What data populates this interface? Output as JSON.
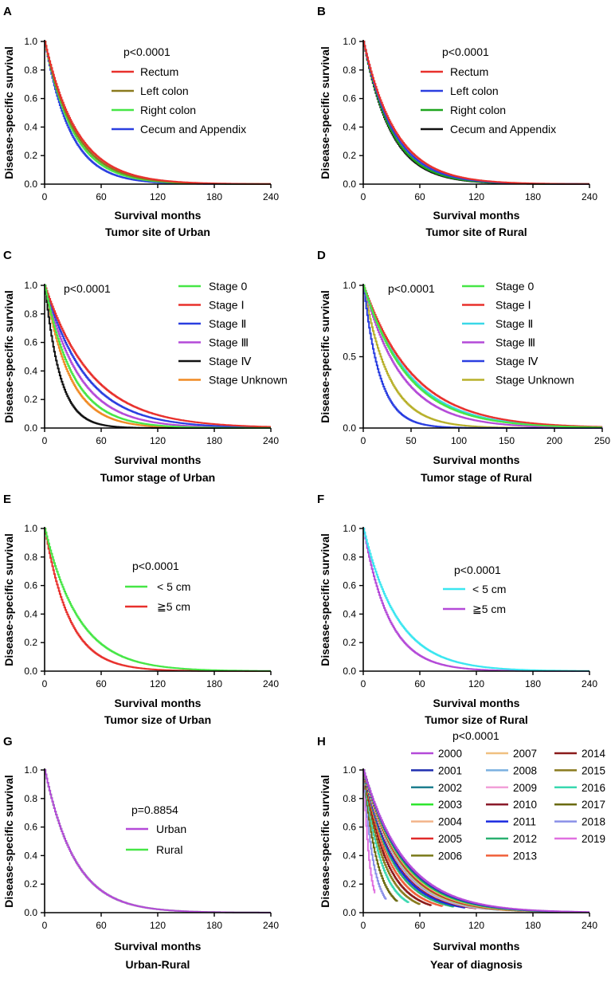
{
  "chart_data": [
    {
      "id": "A",
      "type": "line",
      "letter": "A",
      "ylabel": "Disease-specific survival",
      "xlabel": "Survival months",
      "subtitle": "Tumor site of Urban",
      "xlim": [
        0,
        240
      ],
      "ylim": [
        0,
        1.0
      ],
      "xticks": [
        "0",
        "60",
        "120",
        "180",
        "240"
      ],
      "yticks": [
        "0.0",
        "0.2",
        "0.4",
        "0.6",
        "0.8",
        "1.0"
      ],
      "pvalue": "p<0.0001",
      "series": [
        {
          "name": "Rectum",
          "color": "#e8302c",
          "tau": 34
        },
        {
          "name": "Left colon",
          "color": "#8a7a1e",
          "tau": 32
        },
        {
          "name": "Right colon",
          "color": "#46e646",
          "tau": 30
        },
        {
          "name": "Cecum and Appendix",
          "color": "#2a3ee0",
          "tau": 27
        }
      ]
    },
    {
      "id": "B",
      "type": "line",
      "letter": "B",
      "ylabel": "Disease-specific survival",
      "xlabel": "Survival months",
      "subtitle": "Tumor site of Rural",
      "xlim": [
        0,
        240
      ],
      "ylim": [
        0,
        1.0
      ],
      "xticks": [
        "0",
        "60",
        "120",
        "180",
        "240"
      ],
      "yticks": [
        "0.0",
        "0.2",
        "0.4",
        "0.6",
        "0.8",
        "1.0"
      ],
      "pvalue": "p<0.0001",
      "series": [
        {
          "name": "Rectum",
          "color": "#e8302c",
          "tau": 34
        },
        {
          "name": "Left colon",
          "color": "#2a3ee0",
          "tau": 32
        },
        {
          "name": "Right colon",
          "color": "#1ea51e",
          "tau": 30
        },
        {
          "name": "Cecum and Appendix",
          "color": "#111111",
          "tau": 29
        }
      ]
    },
    {
      "id": "C",
      "type": "line",
      "letter": "C",
      "ylabel": "Disease-specific survival",
      "xlabel": "Survival months",
      "subtitle": "Tumor stage of Urban",
      "xlim": [
        0,
        240
      ],
      "ylim": [
        0,
        1.0
      ],
      "xticks": [
        "0",
        "60",
        "120",
        "180",
        "240"
      ],
      "yticks": [
        "0.0",
        "0.2",
        "0.4",
        "0.6",
        "0.8",
        "1.0"
      ],
      "pvalue": "p<0.0001",
      "series": [
        {
          "name": "Stage 0",
          "color": "#46e646",
          "tau": 30
        },
        {
          "name": "Stage Ⅰ",
          "color": "#e8302c",
          "tau": 50
        },
        {
          "name": "Stage Ⅱ",
          "color": "#2a3ee0",
          "tau": 43
        },
        {
          "name": "Stage Ⅲ",
          "color": "#b44ad8",
          "tau": 36
        },
        {
          "name": "Stage Ⅳ",
          "color": "#111111",
          "tau": 16
        },
        {
          "name": "Stage Unknown",
          "color": "#f08a24",
          "tau": 26
        }
      ]
    },
    {
      "id": "D",
      "type": "line",
      "letter": "D",
      "ylabel": "Disease-specific survival",
      "xlabel": "Survival months",
      "subtitle": "Tumor stage of Rural",
      "xlim": [
        0,
        250
      ],
      "ylim": [
        0,
        1.0
      ],
      "xticks": [
        "0",
        "50",
        "100",
        "150",
        "200",
        "250"
      ],
      "yticks": [
        "0.0",
        "0.5",
        "1.0"
      ],
      "pvalue": "p<0.0001",
      "series": [
        {
          "name": "Stage 0",
          "color": "#46e646",
          "tau": 46
        },
        {
          "name": "Stage Ⅰ",
          "color": "#e8302c",
          "tau": 52
        },
        {
          "name": "Stage Ⅱ",
          "color": "#3ad8e8",
          "tau": 48
        },
        {
          "name": "Stage Ⅲ",
          "color": "#b44ad8",
          "tau": 40
        },
        {
          "name": "Stage Ⅳ",
          "color": "#2a3ee0",
          "tau": 17
        },
        {
          "name": "Stage Unknown",
          "color": "#b8b02a",
          "tau": 26
        }
      ]
    },
    {
      "id": "E",
      "type": "line",
      "letter": "E",
      "ylabel": "Disease-specific survival",
      "xlabel": "Survival months",
      "subtitle": "Tumor size of Urban",
      "xlim": [
        0,
        240
      ],
      "ylim": [
        0,
        1.0
      ],
      "xticks": [
        "0",
        "60",
        "120",
        "180",
        "240"
      ],
      "yticks": [
        "0.0",
        "0.2",
        "0.4",
        "0.6",
        "0.8",
        "1.0"
      ],
      "pvalue": "p<0.0001",
      "series": [
        {
          "name": "< 5 cm",
          "color": "#46e646",
          "tau": 36
        },
        {
          "name": "≧5 cm",
          "color": "#e8302c",
          "tau": 26
        }
      ]
    },
    {
      "id": "F",
      "type": "line",
      "letter": "F",
      "ylabel": "Disease-specific survival",
      "xlabel": "Survival months",
      "subtitle": "Tumor size of Rural",
      "xlim": [
        0,
        240
      ],
      "ylim": [
        0,
        1.0
      ],
      "xticks": [
        "0",
        "60",
        "120",
        "180",
        "240"
      ],
      "yticks": [
        "0.0",
        "0.2",
        "0.4",
        "0.6",
        "0.8",
        "1.0"
      ],
      "pvalue": "p<0.0001",
      "series": [
        {
          "name": "< 5 cm",
          "color": "#3ae6f0",
          "tau": 36
        },
        {
          "name": "≧5 cm",
          "color": "#b44ad8",
          "tau": 27
        }
      ]
    },
    {
      "id": "G",
      "type": "line",
      "letter": "G",
      "ylabel": "Disease-specific survival",
      "xlabel": "Survival months",
      "subtitle": "Urban-Rural",
      "xlim": [
        0,
        240
      ],
      "ylim": [
        0,
        1.0
      ],
      "xticks": [
        "0",
        "60",
        "120",
        "180",
        "240"
      ],
      "yticks": [
        "0.0",
        "0.2",
        "0.4",
        "0.6",
        "0.8",
        "1.0"
      ],
      "pvalue": "p=0.8854",
      "series": [
        {
          "name": "Urban",
          "color": "#b44ad8",
          "tau": 32
        },
        {
          "name": "Rural",
          "color": "#46e646",
          "tau": 32
        }
      ]
    },
    {
      "id": "H",
      "type": "line",
      "letter": "H",
      "ylabel": "Disease-specific survival",
      "xlabel": "Survival months",
      "subtitle": "Year of diagnosis",
      "xlim": [
        0,
        240
      ],
      "ylim": [
        0,
        1.0
      ],
      "xticks": [
        "0",
        "60",
        "120",
        "180",
        "240"
      ],
      "yticks": [
        "0.0",
        "0.2",
        "0.4",
        "0.6",
        "0.8",
        "1.0"
      ],
      "pvalue": "p<0.0001",
      "series": [
        {
          "name": "2000",
          "color": "#b44ad8",
          "tau": 44,
          "max_x": 240
        },
        {
          "name": "2001",
          "color": "#1f2fb0",
          "tau": 43,
          "max_x": 228
        },
        {
          "name": "2002",
          "color": "#1f7f8f",
          "tau": 42,
          "max_x": 216
        },
        {
          "name": "2003",
          "color": "#2ee62e",
          "tau": 41,
          "max_x": 204
        },
        {
          "name": "2004",
          "color": "#f2b48a",
          "tau": 40,
          "max_x": 192
        },
        {
          "name": "2005",
          "color": "#e02a2a",
          "tau": 39,
          "max_x": 180
        },
        {
          "name": "2006",
          "color": "#7a7a1a",
          "tau": 38,
          "max_x": 168
        },
        {
          "name": "2007",
          "color": "#f0c080",
          "tau": 37,
          "max_x": 156
        },
        {
          "name": "2008",
          "color": "#7ab0e0",
          "tau": 36,
          "max_x": 144
        },
        {
          "name": "2009",
          "color": "#f2a0d8",
          "tau": 35,
          "max_x": 132
        },
        {
          "name": "2010",
          "color": "#8a1a2a",
          "tau": 34,
          "max_x": 120
        },
        {
          "name": "2011",
          "color": "#1a2ae0",
          "tau": 32,
          "max_x": 108
        },
        {
          "name": "2012",
          "color": "#2ab070",
          "tau": 30,
          "max_x": 96
        },
        {
          "name": "2013",
          "color": "#f0603a",
          "tau": 27,
          "max_x": 84
        },
        {
          "name": "2014",
          "color": "#8a1a1a",
          "tau": 24,
          "max_x": 72
        },
        {
          "name": "2015",
          "color": "#8a7a1e",
          "tau": 21,
          "max_x": 60
        },
        {
          "name": "2016",
          "color": "#3ad8b0",
          "tau": 18,
          "max_x": 48
        },
        {
          "name": "2017",
          "color": "#6a6a10",
          "tau": 14,
          "max_x": 36
        },
        {
          "name": "2018",
          "color": "#8a90e8",
          "tau": 10,
          "max_x": 24
        },
        {
          "name": "2019",
          "color": "#e070e0",
          "tau": 6,
          "max_x": 12
        }
      ]
    }
  ]
}
